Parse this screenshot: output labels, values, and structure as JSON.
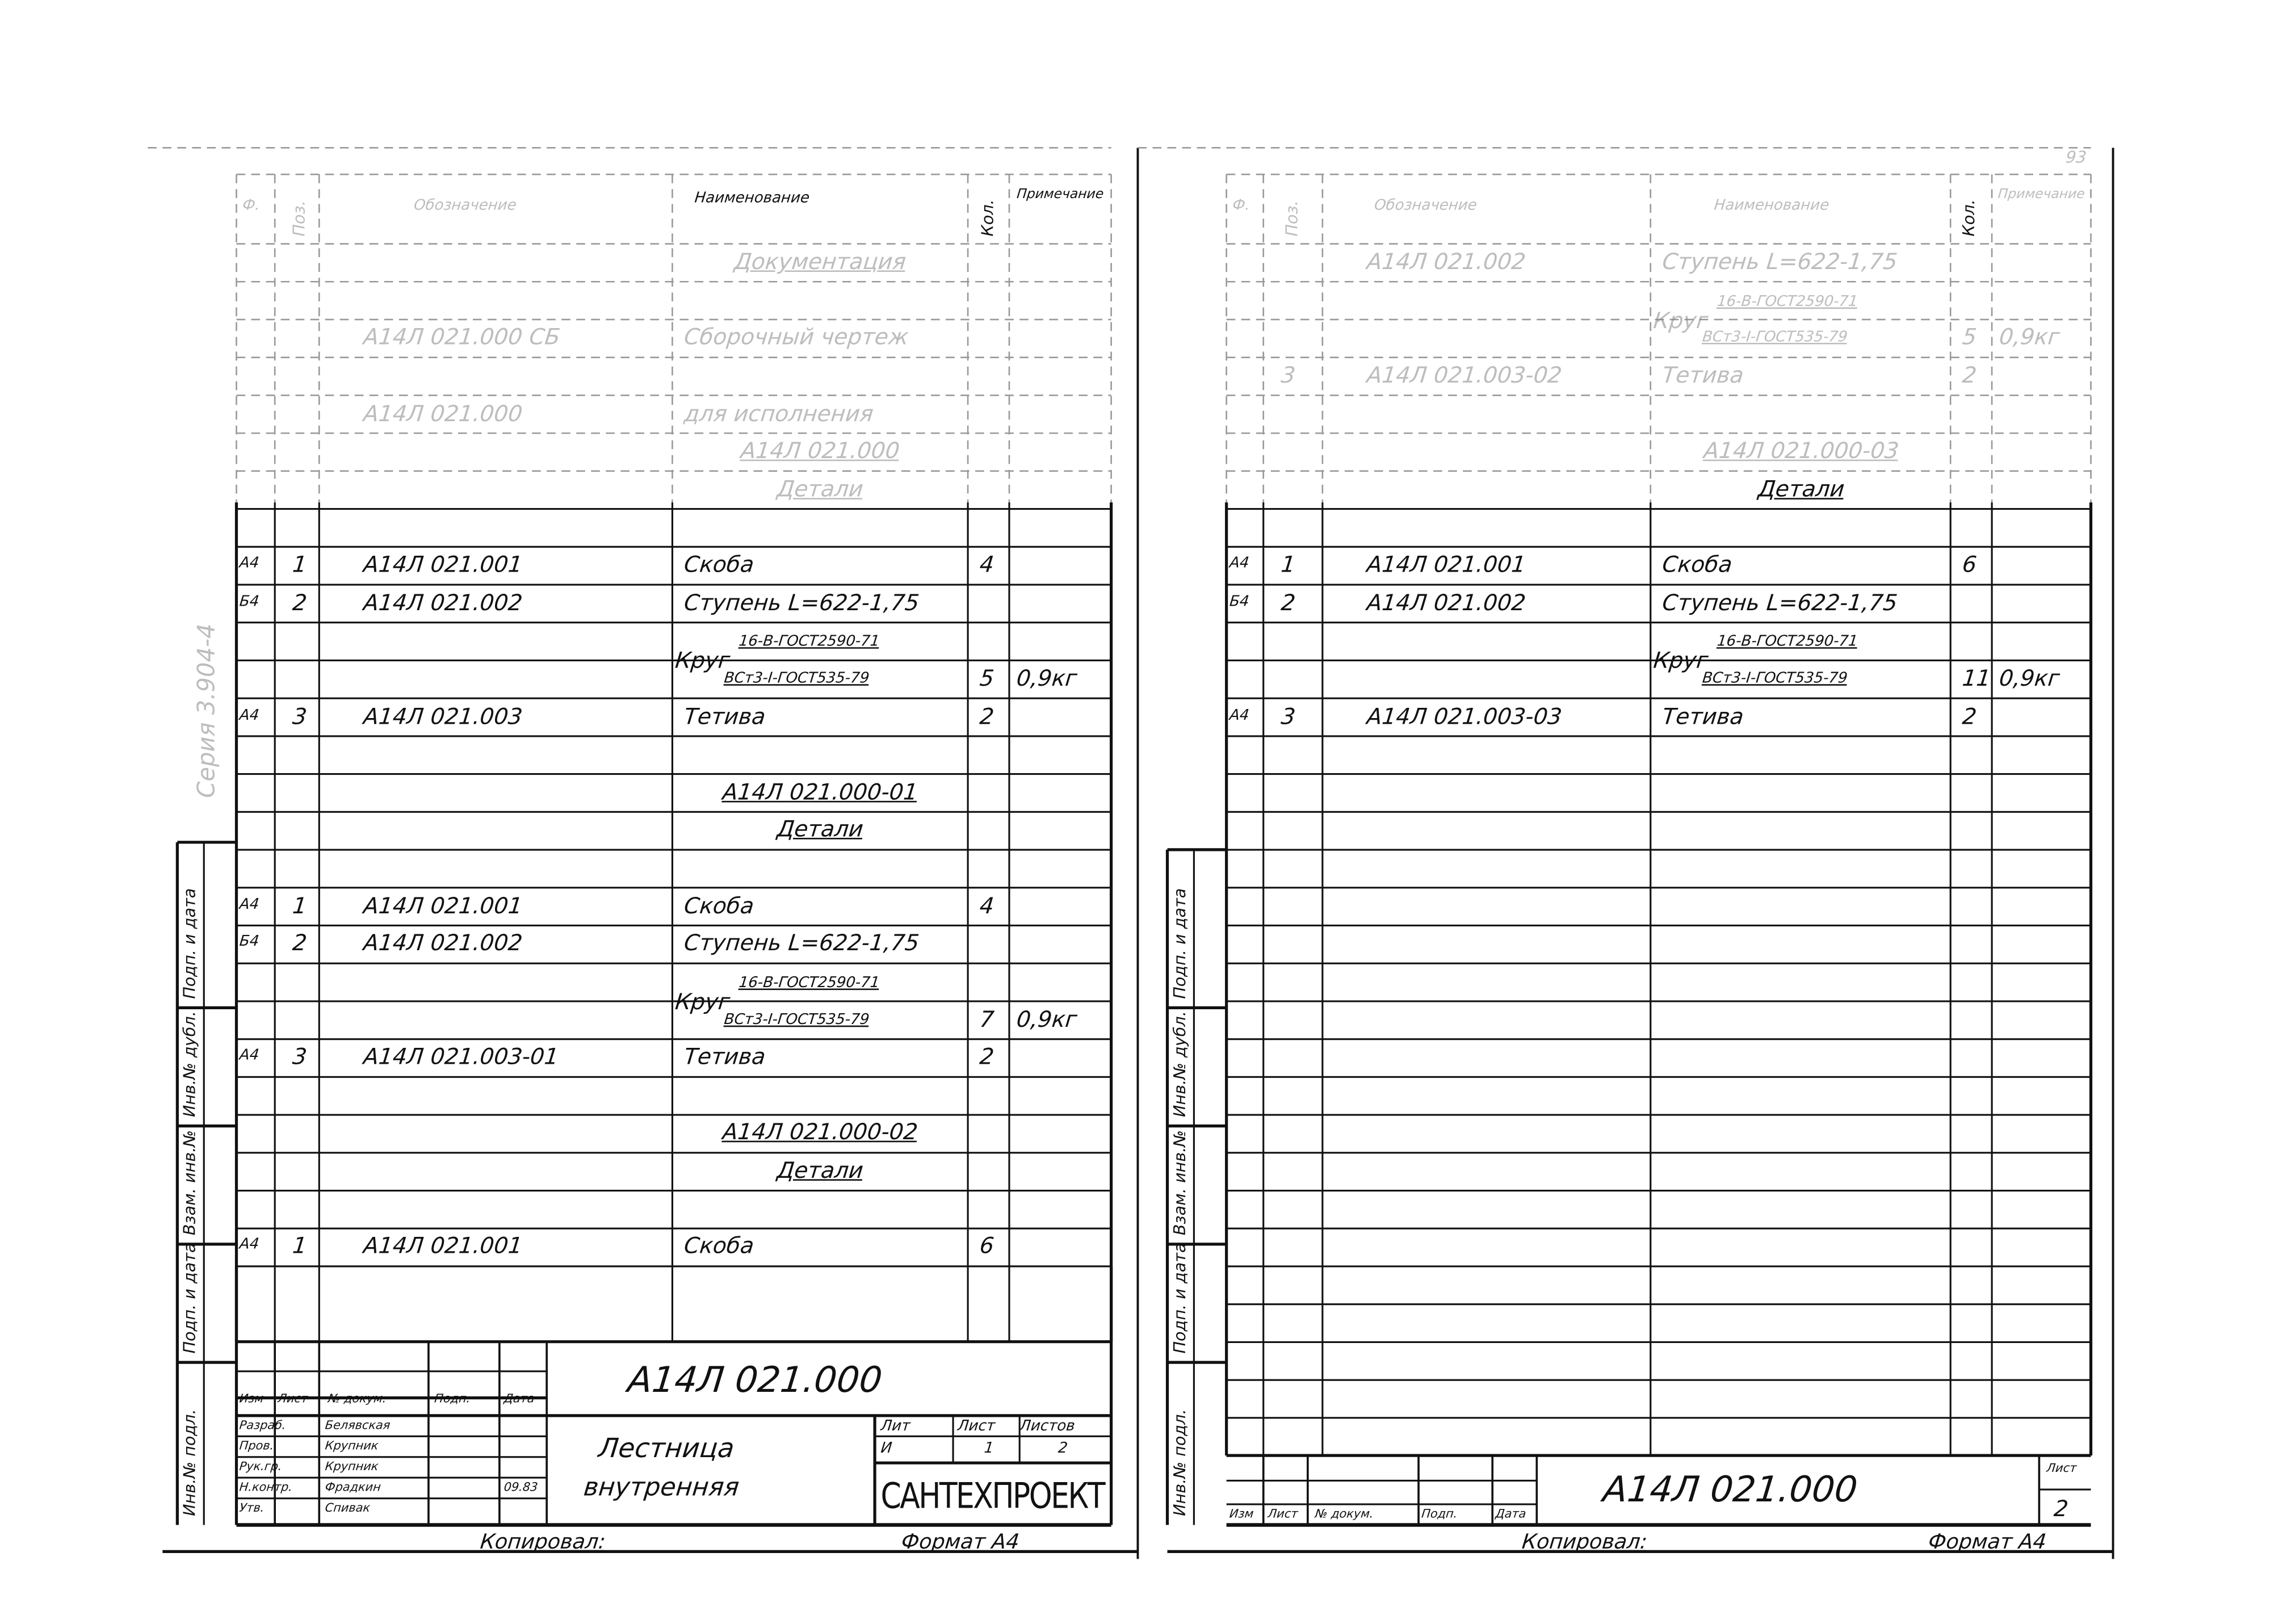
{
  "page_number": "93",
  "series_label": "Серия 3.904-4",
  "side_stamps": [
    "Инв.№ подл.",
    "Подп. и дата",
    "Взам. инв.№",
    "Инв.№ дубл.",
    "Подп. и дата"
  ],
  "headers": {
    "format": "Ф.",
    "pos": "Поз.",
    "designation": "Обозначение",
    "name": "Наименование",
    "qty": "Кол.",
    "note": "Примечание"
  },
  "left_sheet": {
    "entries": [
      {
        "name": "Документация",
        "heading": true
      },
      {
        "designation": "А14Л 021.000 СБ",
        "name": "Сборочный чертеж"
      },
      {
        "designation": "А14Л 021.000",
        "name": "для исполнения"
      },
      {
        "name": "А14Л 021.000",
        "heading": true
      },
      {
        "name": "Детали",
        "heading": true
      },
      {
        "format": "А4",
        "pos": "1",
        "designation": "А14Л 021.001",
        "name": "Скоба",
        "qty": "4"
      },
      {
        "format": "Б4",
        "pos": "2",
        "designation": "А14Л 021.002",
        "name": "Ступень L=622-1,75"
      },
      {
        "name": "Круг",
        "spec1": "16-В-ГОСТ2590-71",
        "spec2": "ВСт3-I-ГОСТ535-79",
        "qty": "5",
        "note": "0,9кг"
      },
      {
        "format": "А4",
        "pos": "3",
        "designation": "А14Л 021.003",
        "name": "Тетива",
        "qty": "2"
      },
      {
        "name": "А14Л 021.000-01",
        "heading": true
      },
      {
        "name": "Детали",
        "heading": true
      },
      {
        "format": "А4",
        "pos": "1",
        "designation": "А14Л 021.001",
        "name": "Скоба",
        "qty": "4"
      },
      {
        "format": "Б4",
        "pos": "2",
        "designation": "А14Л 021.002",
        "name": "Ступень L=622-1,75"
      },
      {
        "name": "Круг",
        "spec1": "16-В-ГОСТ2590-71",
        "spec2": "ВСт3-I-ГОСТ535-79",
        "qty": "7",
        "note": "0,9кг"
      },
      {
        "format": "А4",
        "pos": "3",
        "designation": "А14Л 021.003-01",
        "name": "Тетива",
        "qty": "2"
      },
      {
        "name": "А14Л 021.000-02",
        "heading": true
      },
      {
        "name": "Детали",
        "heading": true
      },
      {
        "format": "А4",
        "pos": "1",
        "designation": "А14Л 021.001",
        "name": "Скоба",
        "qty": "6"
      }
    ],
    "title_block": {
      "doc_code": "А14Л 021.000",
      "col_heads": [
        "Изм",
        "Лист",
        "№ докум.",
        "Подп.",
        "Дата"
      ],
      "roles": [
        {
          "role": "Разраб.",
          "person": "Белявская"
        },
        {
          "role": "Пров.",
          "person": "Крупник"
        },
        {
          "role": "Рук.гр.",
          "person": "Крупник"
        },
        {
          "role": "Н.контр.",
          "person": "Фрадкин",
          "date": "09.83"
        },
        {
          "role": "Утв.",
          "person": "Спивак"
        }
      ],
      "title_line1": "Лестница",
      "title_line2": "внутренняя",
      "lit_label": "Лит",
      "sheet_label": "Лист",
      "sheets_label": "Листов",
      "lit_value": "И",
      "sheet_value": "1",
      "sheets_value": "2",
      "organization": "САНТЕХПРОЕКТ"
    },
    "copied_label": "Копировал:",
    "format_label": "Формат А4"
  },
  "right_sheet": {
    "entries": [
      {
        "designation": "А14Л 021.002",
        "name": "Ступень L=622-1,75"
      },
      {
        "name": "Круг",
        "spec1": "16-В-ГОСТ2590-71",
        "spec2": "ВСт3-I-ГОСТ535-79",
        "qty": "5",
        "note": "0,9кг"
      },
      {
        "pos": "3",
        "designation": "А14Л 021.003-02",
        "name": "Тетива",
        "qty": "2"
      },
      {
        "name": "А14Л 021.000-03",
        "heading": true
      },
      {
        "name": "Детали",
        "heading": true
      },
      {
        "format": "А4",
        "pos": "1",
        "designation": "А14Л 021.001",
        "name": "Скоба",
        "qty": "6"
      },
      {
        "format": "Б4",
        "pos": "2",
        "designation": "А14Л 021.002",
        "name": "Ступень L=622-1,75"
      },
      {
        "name": "Круг",
        "spec1": "16-В-ГОСТ2590-71",
        "spec2": "ВСт3-I-ГОСТ535-79",
        "qty": "11",
        "note": "0,9кг"
      },
      {
        "format": "А4",
        "pos": "3",
        "designation": "А14Л 021.003-03",
        "name": "Тетива",
        "qty": "2"
      }
    ],
    "title_block": {
      "doc_code": "А14Л 021.000",
      "col_heads": [
        "Изм",
        "Лист",
        "№ докум.",
        "Подп.",
        "Дата"
      ],
      "sheet_label": "Лист",
      "sheet_value": "2"
    },
    "copied_label": "Копировал:",
    "format_label": "Формат А4"
  }
}
